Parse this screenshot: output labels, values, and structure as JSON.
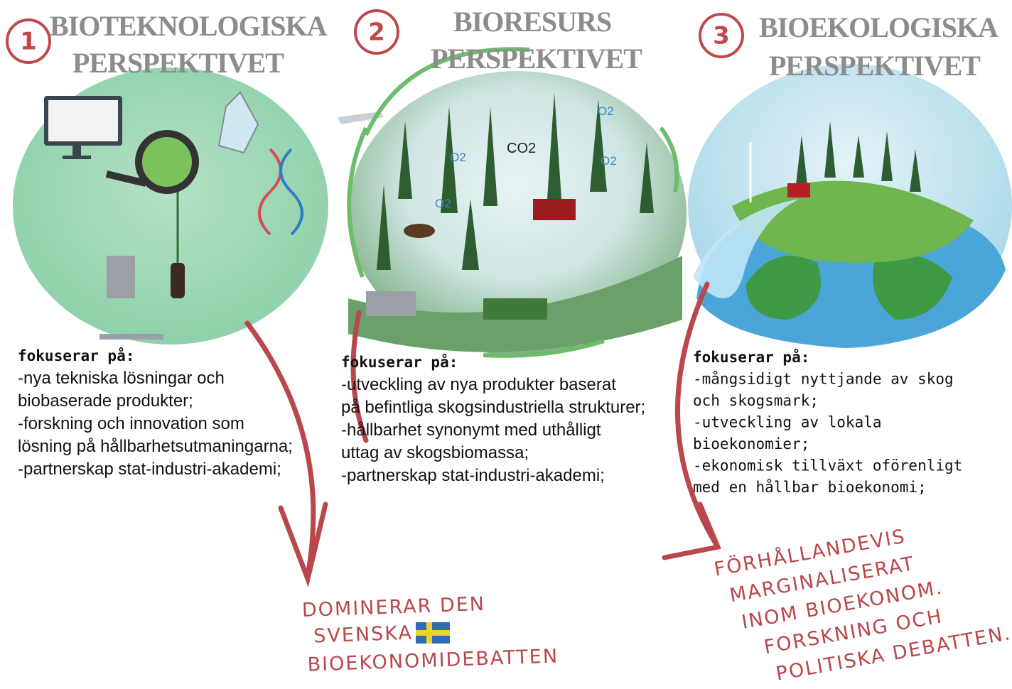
{
  "panels": [
    {
      "number": "1",
      "title": [
        "BIOTEKNOLOGISKA",
        "PERSPEKTIVET"
      ],
      "focus_label": "fokuserar på:",
      "lines": [
        "-nya tekniska lösningar och",
        "biobaserade produkter;",
        "-forskning och innovation som",
        "lösning på hållbarhetsutmaningarna;",
        "-partnerskap stat-industri-akademi;"
      ]
    },
    {
      "number": "2",
      "title": [
        "BIORESURS",
        "PERSPEKTIVET"
      ],
      "focus_label": "fokuserar på:",
      "illustration_labels": [
        "CO2",
        "O2",
        "O2",
        "O2",
        "O2"
      ],
      "lines": [
        "-utveckling av nya produkter baserat",
        "på befintliga skogsindustriella strukturer;",
        "-hållbarhet synonymt med uthålligt",
        "uttag av skogsbiomassa;",
        "-partnerskap stat-industri-akademi;"
      ]
    },
    {
      "number": "3",
      "title": [
        "BIOEKOLOGISKA",
        "PERSPEKTIVET"
      ],
      "focus_label": "fokuserar på:",
      "lines": [
        "-mångsidigt nyttjande av skog",
        "och skogsmark;",
        "-utveckling av lokala",
        "bioekonomier;",
        "-ekonomisk tillväxt oförenligt",
        "med en hållbar bioekonomi;"
      ]
    }
  ],
  "annotations": [
    {
      "lines": [
        "DOMINERAR DEN",
        "SVENSKA",
        "BIOEKONOMIDEBATTEN"
      ]
    },
    {
      "lines": [
        "FÖRHÅLLANDEVIS",
        "MARGINALISERAT",
        "INOM BIOEKONOM.",
        "FORSKNING OCH",
        "POLITISKA DEBATTEN."
      ]
    }
  ]
}
